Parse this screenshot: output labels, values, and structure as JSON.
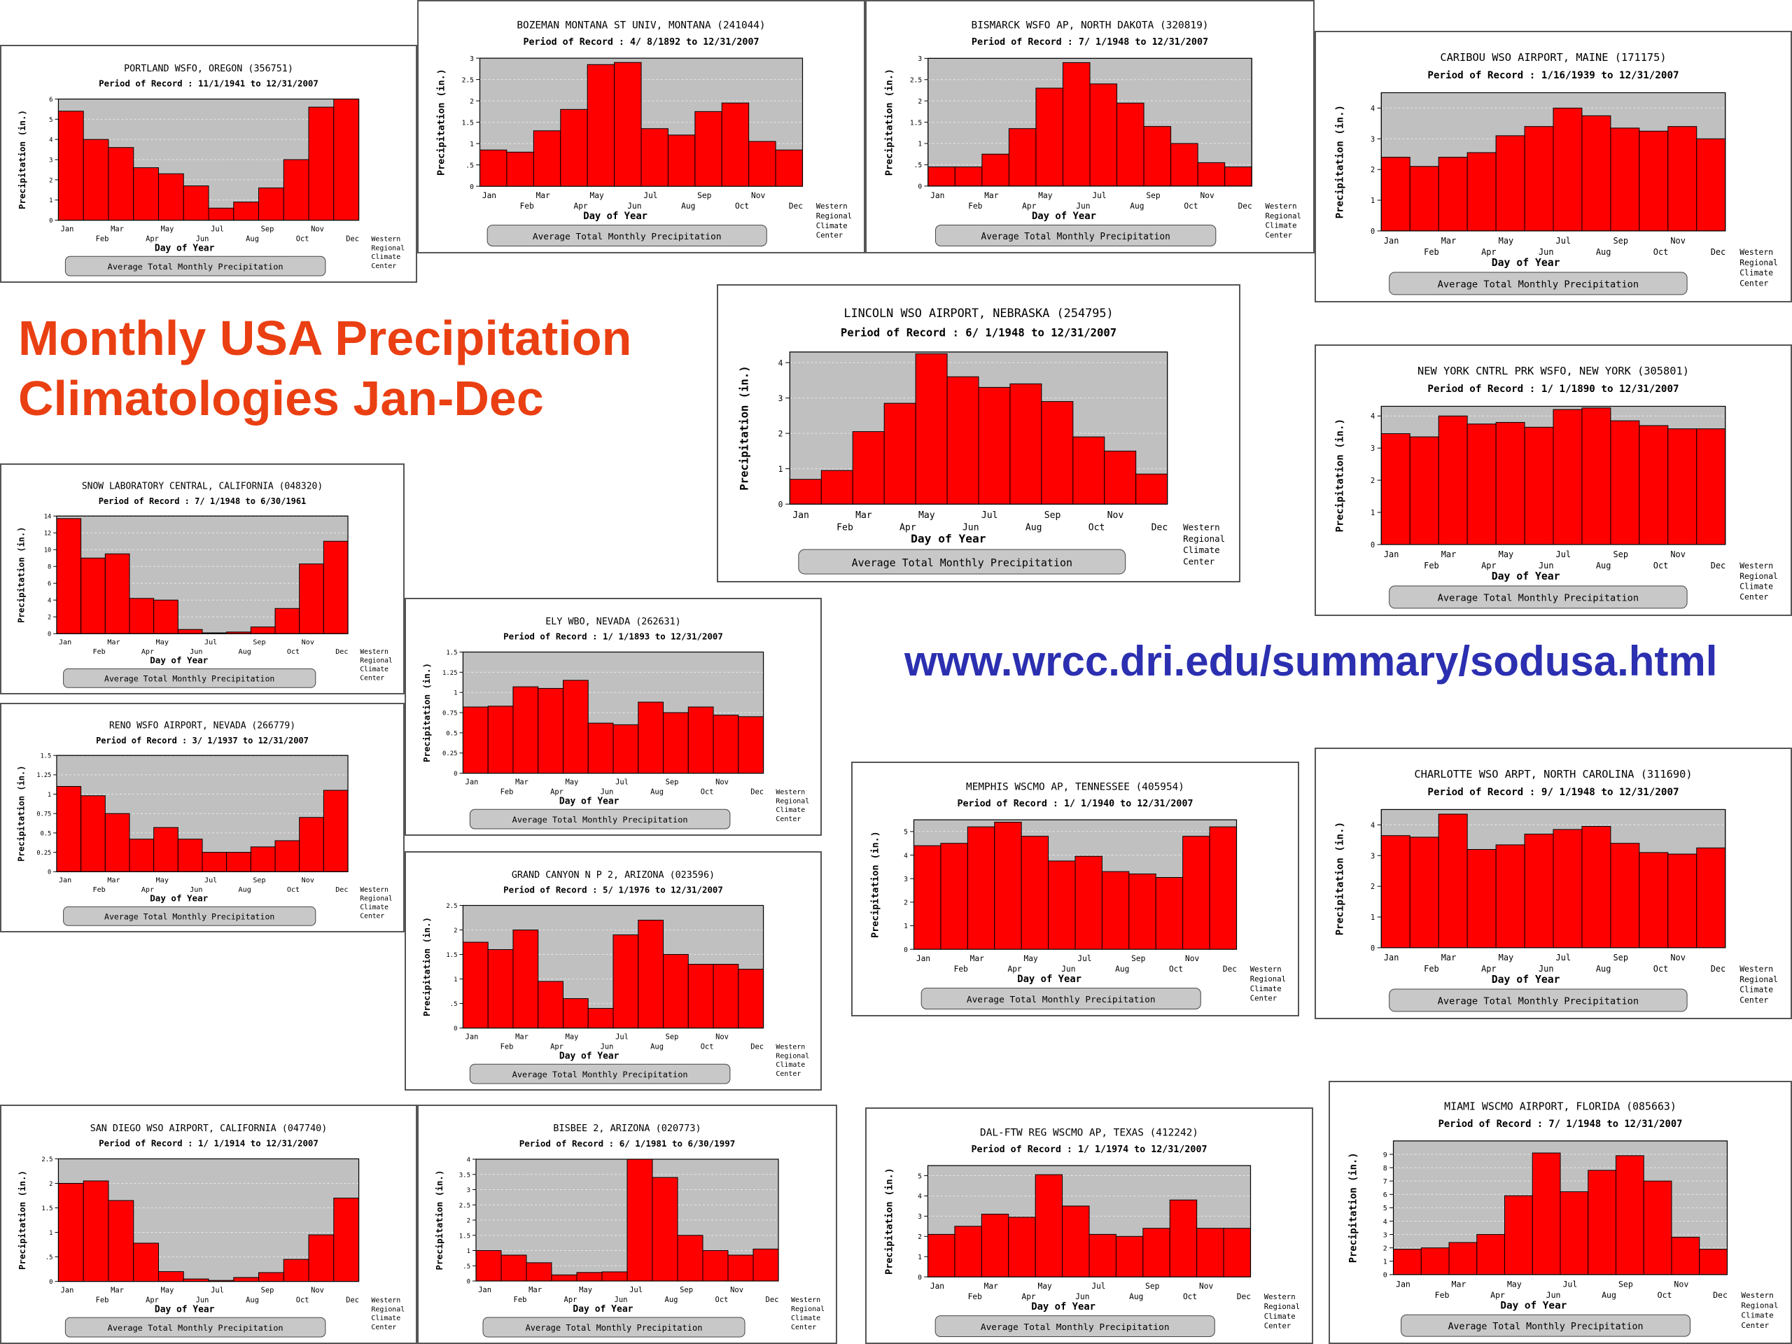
{
  "headline": {
    "line1": "Monthly USA Precipitation",
    "line2": "Climatologies Jan-Dec",
    "color": "#ea3f12"
  },
  "url": {
    "text": "www.wrcc.dri.edu/summary/sodusa.html",
    "color": "#2b2fb0"
  },
  "common": {
    "months": [
      "Jan",
      "Feb",
      "Mar",
      "Apr",
      "May",
      "Jun",
      "Jul",
      "Aug",
      "Sep",
      "Oct",
      "Nov",
      "Dec"
    ],
    "ylabel": "Precipitation (in.)",
    "xlabel": "Day of Year",
    "footer": "Average Total Monthly Precipitation",
    "credit": [
      "Western",
      "Regional",
      "Climate",
      "Center"
    ],
    "bar_color": "#ff0000",
    "plot_bg": "#c0c0c0"
  },
  "chart_data": [
    {
      "type": "bar",
      "title": "PORTLAND WSFO, OREGON   (356751)",
      "subtitle": "Period of Record : 11/1/1941 to 12/31/2007",
      "ylim": [
        0,
        6
      ],
      "yticks": [
        "0",
        "1",
        "2",
        "3",
        "4",
        "5",
        "6"
      ],
      "values": [
        5.4,
        4.0,
        3.6,
        2.6,
        2.3,
        1.7,
        0.6,
        0.9,
        1.6,
        3.0,
        5.6,
        6.0
      ]
    },
    {
      "type": "bar",
      "title": "BOZEMAN MONTANA ST UNIV, MONTANA   (241044)",
      "subtitle": "Period of Record : 4/ 8/1892 to 12/31/2007",
      "ylim": [
        0,
        3
      ],
      "yticks": [
        "0",
        ".5",
        "1",
        "1.5",
        "2",
        "2.5",
        "3"
      ],
      "values": [
        0.85,
        0.8,
        1.3,
        1.8,
        2.85,
        2.9,
        1.35,
        1.2,
        1.75,
        1.95,
        1.05,
        0.85
      ]
    },
    {
      "type": "bar",
      "title": "BISMARCK WSFO AP, NORTH DAKOTA   (320819)",
      "subtitle": "Period of Record : 7/ 1/1948 to 12/31/2007",
      "ylim": [
        0,
        3
      ],
      "yticks": [
        "0",
        ".5",
        "1",
        "1.5",
        "2",
        "2.5",
        "3"
      ],
      "values": [
        0.45,
        0.45,
        0.75,
        1.35,
        2.3,
        2.9,
        2.4,
        1.95,
        1.4,
        1.0,
        0.55,
        0.45
      ]
    },
    {
      "type": "bar",
      "title": "CARIBOU WSO AIRPORT, MAINE   (171175)",
      "subtitle": "Period of Record : 1/16/1939 to 12/31/2007",
      "ylim": [
        0,
        4.5
      ],
      "yticks": [
        "0",
        "1",
        "2",
        "3",
        "4"
      ],
      "values": [
        2.4,
        2.1,
        2.4,
        2.55,
        3.1,
        3.4,
        4.0,
        3.75,
        3.35,
        3.25,
        3.4,
        3.0
      ]
    },
    {
      "type": "bar",
      "title": "LINCOLN WSO AIRPORT, NEBRASKA   (254795)",
      "subtitle": "Period of Record : 6/ 1/1948 to 12/31/2007",
      "ylim": [
        0,
        4.3
      ],
      "yticks": [
        "0",
        "1",
        "2",
        "3",
        "4"
      ],
      "values": [
        0.7,
        0.95,
        2.05,
        2.85,
        4.25,
        3.6,
        3.3,
        3.4,
        2.9,
        1.9,
        1.5,
        0.85
      ]
    },
    {
      "type": "bar",
      "title": "NEW YORK CNTRL PRK WSFO, NEW YORK   (305801)",
      "subtitle": "Period of Record : 1/ 1/1890 to 12/31/2007",
      "ylim": [
        0,
        4.3
      ],
      "yticks": [
        "0",
        "1",
        "2",
        "3",
        "4"
      ],
      "values": [
        3.45,
        3.35,
        4.0,
        3.75,
        3.8,
        3.65,
        4.2,
        4.25,
        3.85,
        3.7,
        3.6,
        3.6
      ]
    },
    {
      "type": "bar",
      "title": "SNOW LABORATORY CENTRAL, CALIFORNIA   (048320)",
      "subtitle": "Period of Record : 7/ 1/1948 to 6/30/1961",
      "ylim": [
        0,
        14
      ],
      "yticks": [
        "0",
        "2",
        "4",
        "6",
        "8",
        "10",
        "12",
        "14"
      ],
      "values": [
        13.7,
        9.0,
        9.5,
        4.2,
        4.0,
        0.5,
        0.1,
        0.2,
        0.8,
        3.0,
        8.3,
        11.0
      ]
    },
    {
      "type": "bar",
      "title": "ELY WBO, NEVADA   (262631)",
      "subtitle": "Period of Record : 1/ 1/1893 to 12/31/2007",
      "ylim": [
        0,
        1.5
      ],
      "yticks": [
        "0",
        "0.25",
        "0.5",
        "0.75",
        "1",
        "1.25",
        "1.5"
      ],
      "values": [
        0.82,
        0.83,
        1.07,
        1.05,
        1.15,
        0.62,
        0.6,
        0.88,
        0.75,
        0.82,
        0.72,
        0.7
      ]
    },
    {
      "type": "bar",
      "title": "RENO WSFO AIRPORT, NEVADA   (266779)",
      "subtitle": "Period of Record : 3/ 1/1937 to 12/31/2007",
      "ylim": [
        0,
        1.5
      ],
      "yticks": [
        "0",
        "0.25",
        "0.5",
        "0.75",
        "1",
        "1.25",
        "1.5"
      ],
      "values": [
        1.1,
        0.98,
        0.75,
        0.42,
        0.57,
        0.42,
        0.25,
        0.25,
        0.32,
        0.4,
        0.7,
        1.05
      ]
    },
    {
      "type": "bar",
      "title": "GRAND CANYON N P 2, ARIZONA   (023596)",
      "subtitle": "Period of Record : 5/ 1/1976 to 12/31/2007",
      "ylim": [
        0,
        2.5
      ],
      "yticks": [
        "0",
        ".5",
        "1",
        "1.5",
        "2",
        "2.5"
      ],
      "values": [
        1.75,
        1.6,
        2.0,
        0.95,
        0.6,
        0.4,
        1.9,
        2.2,
        1.5,
        1.3,
        1.3,
        1.2
      ]
    },
    {
      "type": "bar",
      "title": "MEMPHIS WSCMO AP, TENNESSEE   (405954)",
      "subtitle": "Period of Record : 1/ 1/1940 to 12/31/2007",
      "ylim": [
        0,
        5.5
      ],
      "yticks": [
        "0",
        "1",
        "2",
        "3",
        "4",
        "5"
      ],
      "values": [
        4.4,
        4.5,
        5.2,
        5.4,
        4.8,
        3.75,
        3.95,
        3.3,
        3.2,
        3.05,
        4.8,
        5.2
      ]
    },
    {
      "type": "bar",
      "title": "CHARLOTTE WSO ARPT, NORTH CAROLINA   (311690)",
      "subtitle": "Period of Record : 9/ 1/1948 to 12/31/2007",
      "ylim": [
        0,
        4.5
      ],
      "yticks": [
        "0",
        "1",
        "2",
        "3",
        "4"
      ],
      "values": [
        3.65,
        3.6,
        4.35,
        3.2,
        3.35,
        3.7,
        3.85,
        3.95,
        3.4,
        3.1,
        3.05,
        3.25
      ]
    },
    {
      "type": "bar",
      "title": "SAN DIEGO WSO AIRPORT, CALIFORNIA   (047740)",
      "subtitle": "Period of Record : 1/ 1/1914 to 12/31/2007",
      "ylim": [
        0,
        2.5
      ],
      "yticks": [
        "0",
        ".5",
        "1",
        "1.5",
        "2",
        "2.5"
      ],
      "values": [
        2.0,
        2.05,
        1.65,
        0.78,
        0.2,
        0.05,
        0.02,
        0.08,
        0.18,
        0.45,
        0.95,
        1.7
      ]
    },
    {
      "type": "bar",
      "title": "BISBEE 2, ARIZONA   (020773)",
      "subtitle": "Period of Record : 6/ 1/1981 to 6/30/1997",
      "ylim": [
        0,
        4
      ],
      "yticks": [
        "0",
        ".5",
        "1",
        "1.5",
        "2",
        "2.5",
        "3",
        "3.5",
        "4"
      ],
      "values": [
        1.0,
        0.85,
        0.6,
        0.2,
        0.28,
        0.3,
        4.0,
        3.4,
        1.5,
        1.0,
        0.85,
        1.05
      ]
    },
    {
      "type": "bar",
      "title": "DAL-FTW REG WSCMO AP, TEXAS   (412242)",
      "subtitle": "Period of Record : 1/ 1/1974 to 12/31/2007",
      "ylim": [
        0,
        5.5
      ],
      "yticks": [
        "0",
        "1",
        "2",
        "3",
        "4",
        "5"
      ],
      "values": [
        2.1,
        2.5,
        3.1,
        2.95,
        5.05,
        3.5,
        2.1,
        2.0,
        2.4,
        3.8,
        2.4,
        2.4
      ]
    },
    {
      "type": "bar",
      "title": "MIAMI WSCMO AIRPORT, FLORIDA   (085663)",
      "subtitle": "Period of Record : 7/ 1/1948 to 12/31/2007",
      "ylim": [
        0,
        10
      ],
      "yticks": [
        "0",
        "1",
        "2",
        "3",
        "4",
        "5",
        "6",
        "7",
        "8",
        "9"
      ],
      "values": [
        1.9,
        2.0,
        2.4,
        3.0,
        5.9,
        9.1,
        6.2,
        7.8,
        8.9,
        7.0,
        2.8,
        1.9
      ]
    }
  ]
}
